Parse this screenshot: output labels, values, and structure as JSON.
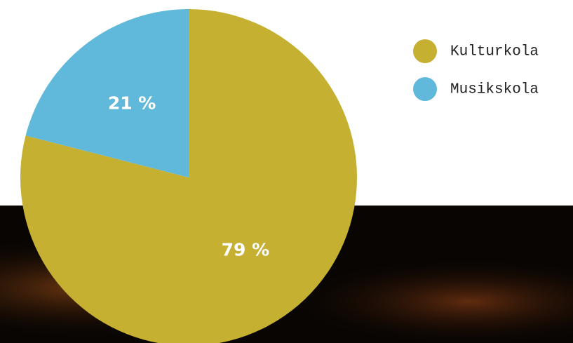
{
  "chart_data": {
    "type": "pie",
    "categories": [
      "Kulturkola",
      "Musikskola"
    ],
    "values": [
      79,
      21
    ],
    "value_labels": [
      "79 %",
      "21 %"
    ],
    "colors": [
      "#c5b032",
      "#60b9da"
    ],
    "legend": "top-right"
  }
}
